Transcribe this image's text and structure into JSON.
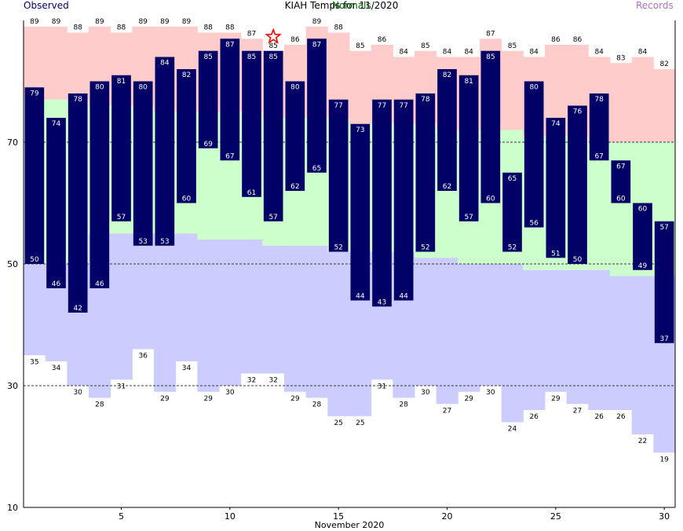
{
  "chart_data": {
    "type": "bar",
    "title": "KIAH Temps for 11/2020",
    "xlabel": "November 2020",
    "ylabel": "",
    "legend": {
      "observed": "Observed",
      "normals": "Normals",
      "records": "Records"
    },
    "colors": {
      "observed": "#000066",
      "observed_label": "#ffffff",
      "record_high_band": "#ffcccc",
      "normal_band": "#ccffcc",
      "record_low_band": "#ccccff",
      "record_star": "#ff0000",
      "grid": "#000000"
    },
    "ylim": [
      10,
      90
    ],
    "yticks": [
      10,
      30,
      50,
      70
    ],
    "xticks": [
      5,
      10,
      15,
      20,
      25,
      30
    ],
    "xlim": [
      0.5,
      30.5
    ],
    "grid": "dashed horizontal at 30, 50, 70",
    "days": [
      1,
      2,
      3,
      4,
      5,
      6,
      7,
      8,
      9,
      10,
      11,
      12,
      13,
      14,
      15,
      16,
      17,
      18,
      19,
      20,
      21,
      22,
      23,
      24,
      25,
      26,
      27,
      28,
      29,
      30
    ],
    "observed_high": [
      79,
      74,
      78,
      80,
      81,
      80,
      84,
      82,
      85,
      87,
      85,
      85,
      80,
      87,
      77,
      73,
      77,
      77,
      78,
      82,
      81,
      85,
      65,
      80,
      74,
      76,
      78,
      67,
      60,
      57
    ],
    "observed_low": [
      50,
      46,
      42,
      46,
      57,
      53,
      53,
      60,
      69,
      67,
      61,
      57,
      62,
      65,
      52,
      44,
      43,
      44,
      52,
      62,
      57,
      60,
      52,
      56,
      51,
      50,
      67,
      60,
      49,
      37
    ],
    "normal_high": [
      77,
      77,
      77,
      76,
      76,
      76,
      75,
      75,
      75,
      75,
      75,
      74,
      74,
      74,
      74,
      73,
      73,
      73,
      73,
      72,
      72,
      72,
      72,
      71,
      71,
      71,
      70,
      70,
      70,
      70
    ],
    "normal_low": [
      50,
      50,
      50,
      55,
      55,
      55,
      55,
      55,
      54,
      54,
      54,
      53,
      53,
      53,
      52,
      52,
      52,
      52,
      51,
      51,
      50,
      50,
      50,
      49,
      49,
      49,
      49,
      48,
      48,
      48
    ],
    "record_high": [
      89,
      89,
      88,
      89,
      88,
      89,
      89,
      89,
      88,
      88,
      87,
      85,
      86,
      89,
      88,
      85,
      86,
      84,
      85,
      84,
      84,
      87,
      85,
      84,
      86,
      86,
      84,
      83,
      84,
      82
    ],
    "record_low": [
      35,
      34,
      30,
      28,
      31,
      36,
      29,
      34,
      29,
      30,
      32,
      32,
      29,
      28,
      25,
      25,
      31,
      28,
      30,
      27,
      29,
      30,
      24,
      26,
      29,
      27,
      26,
      26,
      22,
      19
    ],
    "record_set_days": [
      12
    ],
    "annotations": [
      "record high tied/set on day 12"
    ]
  }
}
